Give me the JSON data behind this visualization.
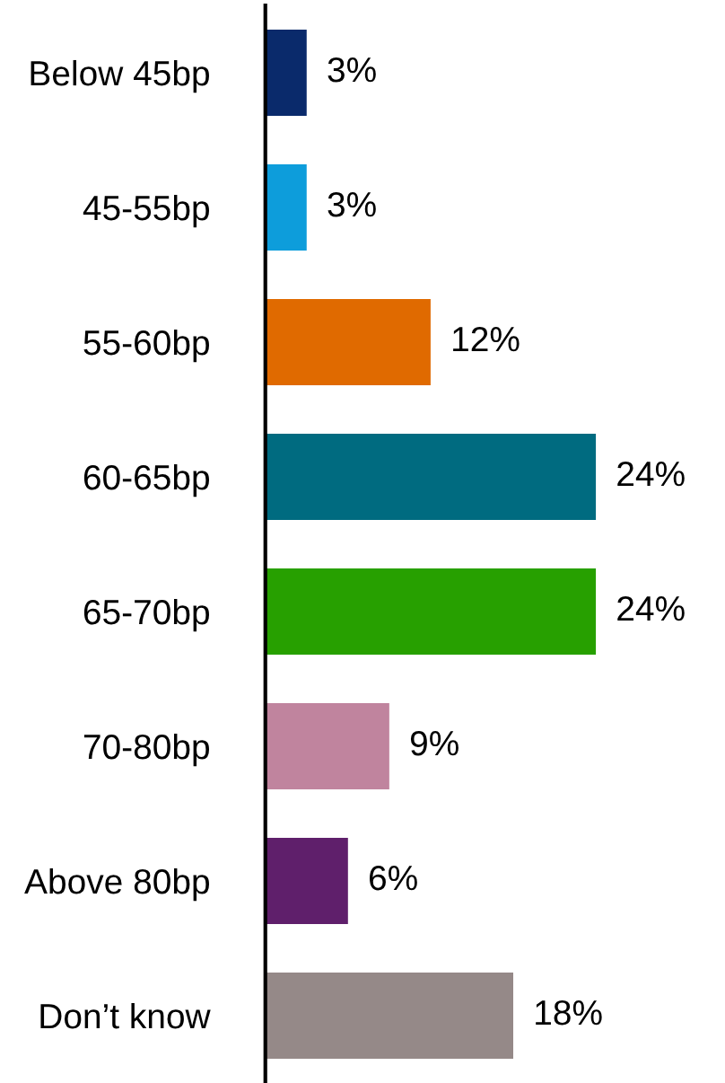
{
  "chart_data": {
    "type": "bar",
    "orientation": "horizontal",
    "categories": [
      "Below 45bp",
      "45-55bp",
      "55-60bp",
      "60-65bp",
      "65-70bp",
      "70-80bp",
      "Above 80bp",
      "Don’t know"
    ],
    "values": [
      3,
      3,
      12,
      24,
      24,
      9,
      6,
      18
    ],
    "value_labels": [
      "3%",
      "3%",
      "12%",
      "24%",
      "24%",
      "9%",
      "6%",
      "18%"
    ],
    "colors": [
      "#0a2a6b",
      "#0d9ddb",
      "#e06a00",
      "#006b80",
      "#27a000",
      "#c0849e",
      "#5f1f6b",
      "#958988"
    ],
    "grid": false,
    "legend": false
  }
}
